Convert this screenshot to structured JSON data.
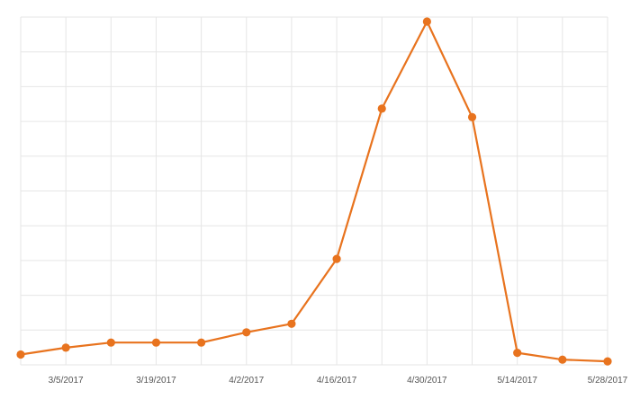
{
  "chart_data": {
    "type": "line",
    "x": [
      "2/26/2017",
      "3/5/2017",
      "3/12/2017",
      "3/19/2017",
      "3/26/2017",
      "4/2/2017",
      "4/9/2017",
      "4/16/2017",
      "4/23/2017",
      "4/30/2017",
      "5/7/2017",
      "5/14/2017",
      "5/21/2017",
      "5/28/2017"
    ],
    "x_tick_labels": [
      "3/5/2017",
      "3/19/2017",
      "4/2/2017",
      "4/16/2017",
      "4/30/2017",
      "5/14/2017",
      "5/28/2017"
    ],
    "series": [
      {
        "values": [
          2.5,
          4.5,
          6.0,
          6.0,
          6.0,
          9.0,
          11.5,
          30.5,
          74.5,
          100.0,
          72.0,
          3.0,
          1.0,
          0.5
        ]
      }
    ],
    "ylim": [
      0,
      100
    ],
    "y_gridlines": 10,
    "y_tick_labels_visible": false,
    "grid": true,
    "line_color": "#e8731e",
    "grid_color": "#e6e6e6",
    "title": "",
    "xlabel": "",
    "ylabel": ""
  }
}
